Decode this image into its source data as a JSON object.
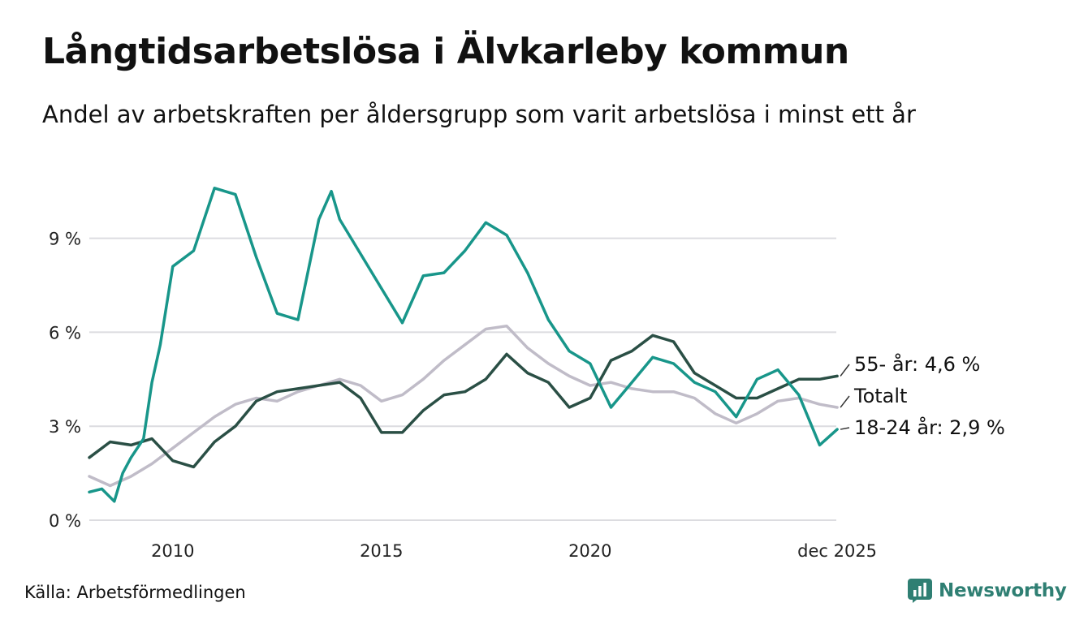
{
  "chart_data": {
    "type": "line",
    "title": "Långtidsarbetslösa i Älvkarleby kommun",
    "subtitle": "Andel av arbetskraften per åldersgrupp som varit arbetslösa i minst ett år",
    "source": "Källa: Arbetsförmedlingen",
    "brand": "Newsworthy",
    "ylim": [
      0,
      11.5
    ],
    "xlim": [
      2008.0,
      2025.92
    ],
    "y_ticks": [
      {
        "value": 0,
        "label": "0 %"
      },
      {
        "value": 3,
        "label": "3 %"
      },
      {
        "value": 6,
        "label": "6 %"
      },
      {
        "value": 9,
        "label": "9 %"
      }
    ],
    "x_ticks": [
      {
        "value": 2010.0,
        "label": "2010"
      },
      {
        "value": 2015.0,
        "label": "2015"
      },
      {
        "value": 2020.0,
        "label": "2020"
      },
      {
        "value": 2025.92,
        "label": "dec 2025"
      }
    ],
    "grid": true,
    "series": [
      {
        "name": "Totalt",
        "label": "Totalt",
        "color": "#c0bcc8",
        "points": [
          [
            2008.0,
            1.4
          ],
          [
            2008.5,
            1.1
          ],
          [
            2009.0,
            1.4
          ],
          [
            2009.5,
            1.8
          ],
          [
            2010.0,
            2.3
          ],
          [
            2010.5,
            2.8
          ],
          [
            2011.0,
            3.3
          ],
          [
            2011.5,
            3.7
          ],
          [
            2012.0,
            3.9
          ],
          [
            2012.5,
            3.8
          ],
          [
            2013.0,
            4.1
          ],
          [
            2013.5,
            4.3
          ],
          [
            2014.0,
            4.5
          ],
          [
            2014.5,
            4.3
          ],
          [
            2015.0,
            3.8
          ],
          [
            2015.5,
            4.0
          ],
          [
            2016.0,
            4.5
          ],
          [
            2016.5,
            5.1
          ],
          [
            2017.0,
            5.6
          ],
          [
            2017.5,
            6.1
          ],
          [
            2018.0,
            6.2
          ],
          [
            2018.5,
            5.5
          ],
          [
            2019.0,
            5.0
          ],
          [
            2019.5,
            4.6
          ],
          [
            2020.0,
            4.3
          ],
          [
            2020.5,
            4.4
          ],
          [
            2021.0,
            4.2
          ],
          [
            2021.5,
            4.1
          ],
          [
            2022.0,
            4.1
          ],
          [
            2022.5,
            3.9
          ],
          [
            2023.0,
            3.4
          ],
          [
            2023.5,
            3.1
          ],
          [
            2024.0,
            3.4
          ],
          [
            2024.5,
            3.8
          ],
          [
            2025.0,
            3.9
          ],
          [
            2025.5,
            3.7
          ],
          [
            2025.92,
            3.6
          ]
        ]
      },
      {
        "name": "55- år",
        "label": "55- år: 4,6 %",
        "color": "#2a4f45",
        "points": [
          [
            2008.0,
            2.0
          ],
          [
            2008.5,
            2.5
          ],
          [
            2009.0,
            2.4
          ],
          [
            2009.5,
            2.6
          ],
          [
            2010.0,
            1.9
          ],
          [
            2010.5,
            1.7
          ],
          [
            2011.0,
            2.5
          ],
          [
            2011.5,
            3.0
          ],
          [
            2012.0,
            3.8
          ],
          [
            2012.5,
            4.1
          ],
          [
            2013.0,
            4.2
          ],
          [
            2013.5,
            4.3
          ],
          [
            2014.0,
            4.4
          ],
          [
            2014.5,
            3.9
          ],
          [
            2015.0,
            2.8
          ],
          [
            2015.5,
            2.8
          ],
          [
            2016.0,
            3.5
          ],
          [
            2016.5,
            4.0
          ],
          [
            2017.0,
            4.1
          ],
          [
            2017.5,
            4.5
          ],
          [
            2018.0,
            5.3
          ],
          [
            2018.5,
            4.7
          ],
          [
            2019.0,
            4.4
          ],
          [
            2019.5,
            3.6
          ],
          [
            2020.0,
            3.9
          ],
          [
            2020.5,
            5.1
          ],
          [
            2021.0,
            5.4
          ],
          [
            2021.5,
            5.9
          ],
          [
            2022.0,
            5.7
          ],
          [
            2022.5,
            4.7
          ],
          [
            2023.0,
            4.3
          ],
          [
            2023.5,
            3.9
          ],
          [
            2024.0,
            3.9
          ],
          [
            2024.5,
            4.2
          ],
          [
            2025.0,
            4.5
          ],
          [
            2025.5,
            4.5
          ],
          [
            2025.92,
            4.6
          ]
        ]
      },
      {
        "name": "18-24 år",
        "label": "18-24 år: 2,9 %",
        "color": "#18968a",
        "points": [
          [
            2008.0,
            0.9
          ],
          [
            2008.3,
            1.0
          ],
          [
            2008.6,
            0.6
          ],
          [
            2008.8,
            1.5
          ],
          [
            2009.0,
            2.0
          ],
          [
            2009.3,
            2.6
          ],
          [
            2009.5,
            4.4
          ],
          [
            2009.7,
            5.6
          ],
          [
            2010.0,
            8.1
          ],
          [
            2010.5,
            8.6
          ],
          [
            2011.0,
            10.6
          ],
          [
            2011.5,
            10.4
          ],
          [
            2012.0,
            8.4
          ],
          [
            2012.5,
            6.6
          ],
          [
            2013.0,
            6.4
          ],
          [
            2013.5,
            9.6
          ],
          [
            2013.8,
            10.5
          ],
          [
            2014.0,
            9.6
          ],
          [
            2014.5,
            8.5
          ],
          [
            2015.0,
            7.4
          ],
          [
            2015.5,
            6.3
          ],
          [
            2016.0,
            7.8
          ],
          [
            2016.5,
            7.9
          ],
          [
            2017.0,
            8.6
          ],
          [
            2017.5,
            9.5
          ],
          [
            2018.0,
            9.1
          ],
          [
            2018.5,
            7.9
          ],
          [
            2019.0,
            6.4
          ],
          [
            2019.5,
            5.4
          ],
          [
            2020.0,
            5.0
          ],
          [
            2020.5,
            3.6
          ],
          [
            2021.0,
            4.4
          ],
          [
            2021.5,
            5.2
          ],
          [
            2022.0,
            5.0
          ],
          [
            2022.5,
            4.4
          ],
          [
            2023.0,
            4.1
          ],
          [
            2023.5,
            3.3
          ],
          [
            2024.0,
            4.5
          ],
          [
            2024.5,
            4.8
          ],
          [
            2025.0,
            4.0
          ],
          [
            2025.5,
            2.4
          ],
          [
            2025.92,
            2.9
          ]
        ]
      }
    ]
  }
}
